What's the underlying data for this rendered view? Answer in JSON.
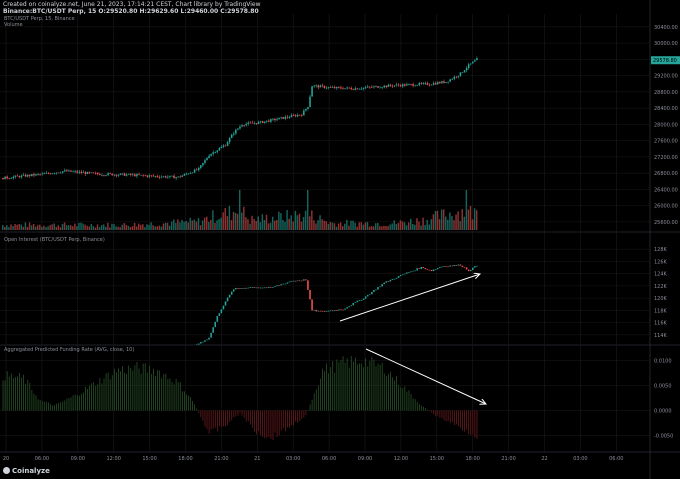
{
  "header": {
    "created": "Created on coinalyze.net, June 21, 2023, 17:14:21 CEST, Chart library by TradingView",
    "ohlc": "Binance:BTC/USDT Perp, 15 O:29520.80 H:29629.60 L:29460.00 C:29578.80"
  },
  "panes": {
    "price_label": "BTC/USDT Perp, 15, Binance",
    "volume_label": "Volume",
    "oi_label": "Open Interest (BTC/USDT Perp, Binance)",
    "funding_label": "Aggregated Predicted Funding Rate (AVG, close, 10)"
  },
  "branding": {
    "logo": "Coinalyze"
  },
  "colors": {
    "up": "#26a69a",
    "down": "#ef5350",
    "bg": "#000000",
    "grid": "#1a1a1a",
    "axis_text": "#8a8e99",
    "last_price_bg": "#26a69a",
    "arrow": "#ffffff"
  },
  "chart_data": [
    {
      "type": "candlestick",
      "title": "BTC/USDT Perp, 15, Binance",
      "yticks": [
        "30400.00",
        "30000.00",
        "29600.00",
        "29200.00",
        "28800.00",
        "28400.00",
        "28000.00",
        "27600.00",
        "27200.00",
        "26800.00",
        "26400.00",
        "26000.00",
        "25600.00"
      ],
      "ylim": [
        25400,
        30520
      ],
      "last_price": "29578.80",
      "key_points": [
        [
          0,
          26680
        ],
        [
          20,
          26780
        ],
        [
          30,
          26850
        ],
        [
          45,
          26780
        ],
        [
          60,
          26760
        ],
        [
          75,
          26720
        ],
        [
          85,
          26700
        ],
        [
          95,
          26900
        ],
        [
          100,
          27250
        ],
        [
          108,
          27500
        ],
        [
          112,
          27800
        ],
        [
          116,
          28000
        ],
        [
          125,
          28050
        ],
        [
          135,
          28150
        ],
        [
          145,
          28250
        ],
        [
          148,
          28450
        ],
        [
          150,
          28950
        ],
        [
          160,
          28900
        ],
        [
          170,
          28880
        ],
        [
          180,
          28920
        ],
        [
          190,
          28960
        ],
        [
          200,
          28980
        ],
        [
          208,
          29000
        ],
        [
          215,
          29050
        ],
        [
          222,
          29250
        ],
        [
          226,
          29450
        ],
        [
          230,
          29600
        ]
      ]
    },
    {
      "type": "bar",
      "title": "Volume",
      "profile": [
        [
          0,
          0.15
        ],
        [
          60,
          0.15
        ],
        [
          95,
          0.25
        ],
        [
          105,
          0.45
        ],
        [
          110,
          0.5
        ],
        [
          115,
          0.6
        ],
        [
          120,
          0.3
        ],
        [
          130,
          0.35
        ],
        [
          148,
          0.45
        ],
        [
          160,
          0.2
        ],
        [
          190,
          0.2
        ],
        [
          205,
          0.3
        ],
        [
          215,
          0.45
        ],
        [
          222,
          0.55
        ],
        [
          230,
          0.5
        ]
      ]
    },
    {
      "type": "line",
      "title": "Open Interest (BTC/USDT Perp, Binance)",
      "yticks": [
        "128K",
        "126K",
        "124K",
        "122K",
        "120K",
        "118K",
        "116K",
        "114K"
      ],
      "ylim": [
        113000,
        129000
      ],
      "key_points": [
        [
          0,
          108000
        ],
        [
          80,
          110000
        ],
        [
          100,
          113500
        ],
        [
          104,
          117000
        ],
        [
          108,
          119500
        ],
        [
          112,
          121500
        ],
        [
          120,
          121800
        ],
        [
          130,
          121700
        ],
        [
          140,
          122800
        ],
        [
          147,
          123000
        ],
        [
          150,
          118000
        ],
        [
          155,
          117800
        ],
        [
          165,
          118200
        ],
        [
          175,
          120000
        ],
        [
          185,
          122500
        ],
        [
          195,
          124000
        ],
        [
          203,
          125000
        ],
        [
          208,
          124500
        ],
        [
          213,
          125200
        ],
        [
          222,
          125400
        ],
        [
          226,
          124500
        ],
        [
          230,
          125300
        ]
      ]
    },
    {
      "type": "bar",
      "title": "Aggregated Predicted Funding Rate (AVG, close, 10)",
      "yticks": [
        "0.0100",
        "0.0050",
        "0.0000",
        "-0.0050"
      ],
      "ylim": [
        -0.0075,
        0.0115
      ],
      "key_points": [
        [
          0,
          0.007
        ],
        [
          10,
          0.0065
        ],
        [
          18,
          0.002
        ],
        [
          25,
          0.001
        ],
        [
          35,
          0.003
        ],
        [
          45,
          0.0055
        ],
        [
          55,
          0.008
        ],
        [
          65,
          0.0085
        ],
        [
          75,
          0.008
        ],
        [
          85,
          0.0055
        ],
        [
          92,
          0.002
        ],
        [
          100,
          -0.0045
        ],
        [
          108,
          -0.003
        ],
        [
          115,
          -0.0005
        ],
        [
          122,
          -0.004
        ],
        [
          130,
          -0.0055
        ],
        [
          140,
          -0.003
        ],
        [
          147,
          -0.001
        ],
        [
          155,
          0.008
        ],
        [
          165,
          0.0095
        ],
        [
          175,
          0.01
        ],
        [
          185,
          0.0085
        ],
        [
          195,
          0.0045
        ],
        [
          203,
          0.001
        ],
        [
          210,
          -0.001
        ],
        [
          220,
          -0.003
        ],
        [
          230,
          -0.005
        ]
      ]
    }
  ],
  "xaxis": {
    "ticks": [
      "20",
      "06:00",
      "09:00",
      "12:00",
      "15:00",
      "18:00",
      "21:00",
      "21",
      "03:00",
      "06:00",
      "09:00",
      "12:00",
      "15:00",
      "18:00",
      "21:00",
      "22",
      "03:00",
      "06:00"
    ]
  }
}
